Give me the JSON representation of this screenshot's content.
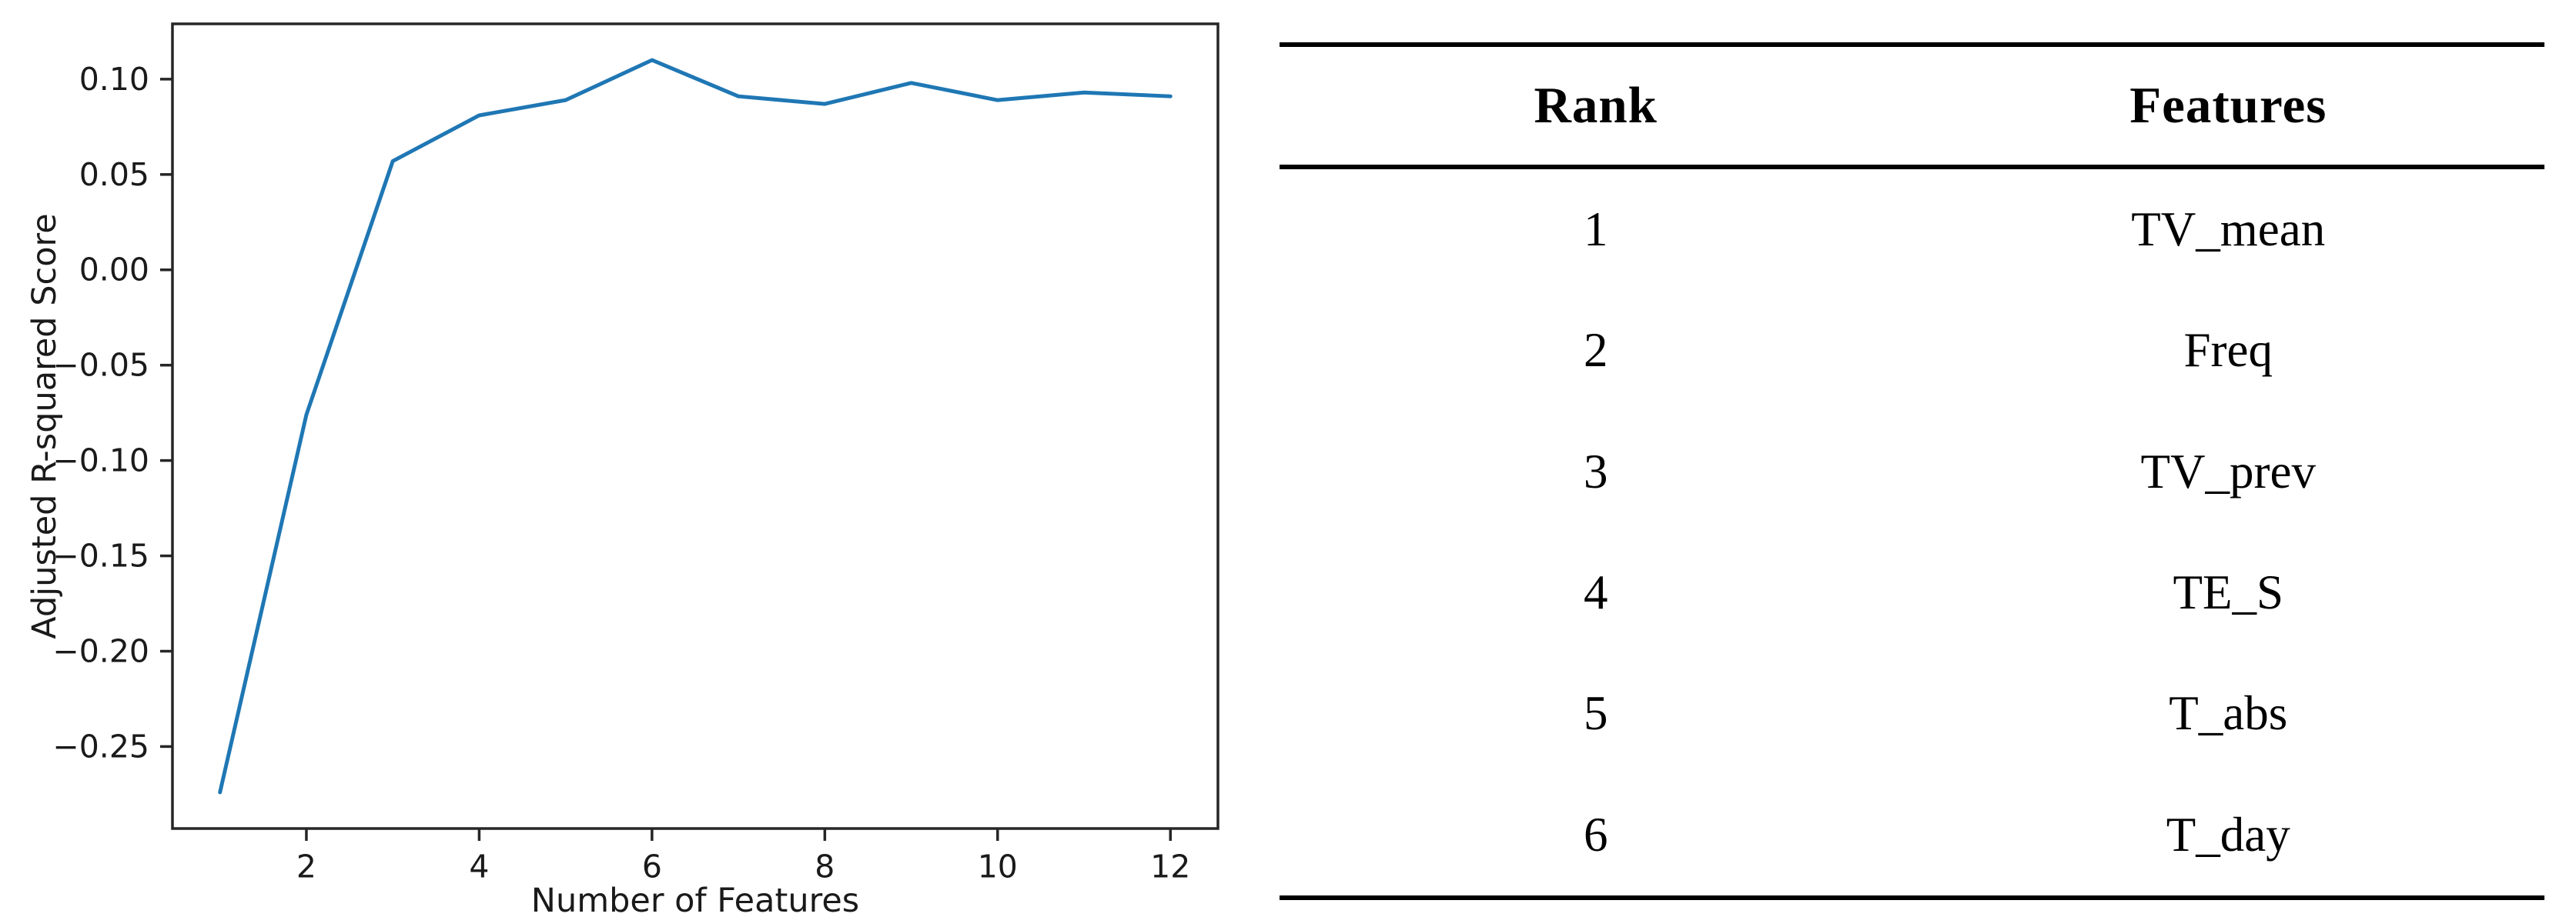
{
  "chart_data": [
    {
      "type": "line",
      "x": [
        1,
        2,
        3,
        4,
        5,
        6,
        7,
        8,
        9,
        10,
        11,
        12
      ],
      "y": [
        -0.274,
        -0.076,
        0.057,
        0.081,
        0.089,
        0.11,
        0.091,
        0.087,
        0.098,
        0.089,
        0.093,
        0.091
      ],
      "title": "",
      "xlabel": "Number of Features",
      "ylabel": "Adjusted R-squared Score",
      "xticks": [
        2,
        4,
        6,
        8,
        10,
        12
      ],
      "yticks": [
        0.1,
        0.05,
        0.0,
        -0.05,
        -0.1,
        -0.15,
        -0.2,
        -0.25
      ],
      "xlim": [
        0.45,
        12.55
      ],
      "ylim": [
        -0.293,
        0.129
      ],
      "grid": false,
      "legend": null,
      "line_color": "#1f77b4",
      "axis_color": "#262626",
      "text_color": "#1a1a1a"
    },
    {
      "type": "table",
      "columns": [
        "Rank",
        "Features"
      ],
      "rows": [
        [
          "1",
          "TV_mean"
        ],
        [
          "2",
          "Freq"
        ],
        [
          "3",
          "TV_prev"
        ],
        [
          "4",
          "TE_S"
        ],
        [
          "5",
          "T_abs"
        ],
        [
          "6",
          "T_day"
        ]
      ]
    }
  ]
}
